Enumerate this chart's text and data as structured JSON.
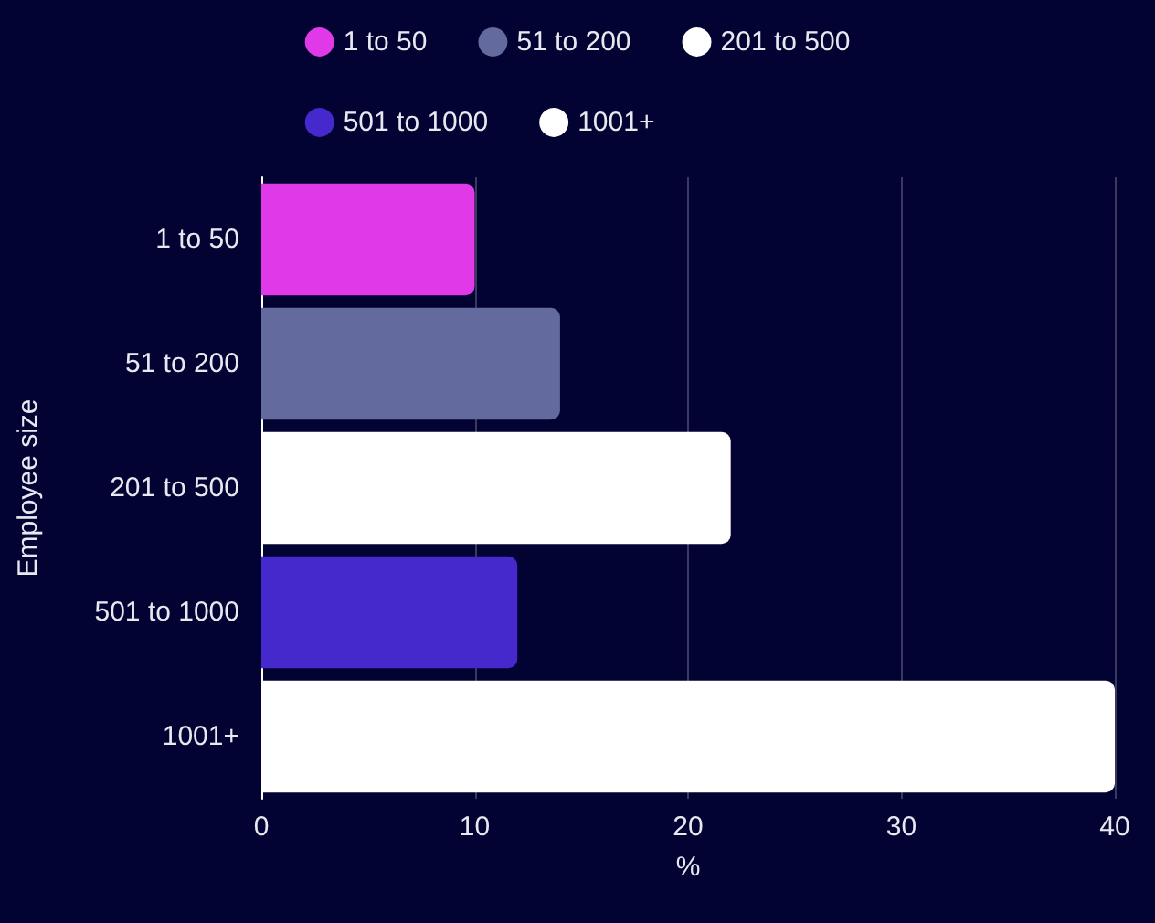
{
  "chart_data": {
    "type": "bar",
    "orientation": "horizontal",
    "categories": [
      "1 to 50",
      "51 to 200",
      "201 to 500",
      "501 to 1000",
      "1001+"
    ],
    "series": [
      {
        "name": "1 to 50",
        "color": "#e03ae8",
        "values": [
          10,
          null,
          null,
          null,
          null
        ]
      },
      {
        "name": "51 to 200",
        "color": "#636a9e",
        "values": [
          null,
          14,
          null,
          null,
          null
        ]
      },
      {
        "name": "201 to 500",
        "color": "#ffffff",
        "values": [
          null,
          null,
          22,
          null,
          null
        ]
      },
      {
        "name": "501 to 1000",
        "color": "#4529cc",
        "values": [
          null,
          null,
          null,
          12,
          null
        ]
      },
      {
        "name": "1001+",
        "color": "#ffffff",
        "values": [
          null,
          null,
          null,
          null,
          40
        ]
      }
    ],
    "xlabel": "%",
    "ylabel": "Employee size",
    "xlim": [
      0,
      40
    ],
    "xticks": [
      0,
      10,
      20,
      30,
      40
    ],
    "grid": "x",
    "legend": "top"
  }
}
